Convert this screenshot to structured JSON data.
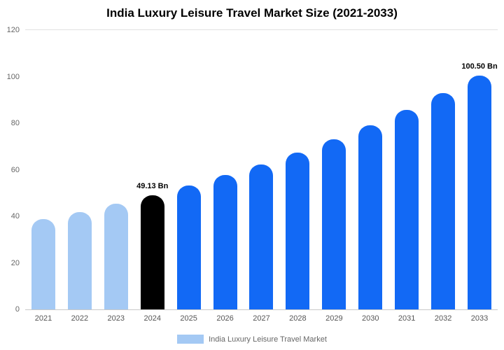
{
  "title": "India Luxury Leisure Travel Market Size (2021-2033)",
  "legend": {
    "label": "India Luxury Leisure Travel Market",
    "swatch_color": "#a4c9f4"
  },
  "colors": {
    "historical": "#a4c9f4",
    "base_year": "#000000",
    "forecast": "#1269f5",
    "axis_line": "#c9c9c9",
    "grid_top": "#e2e2e2",
    "tick_text": "#666666"
  },
  "chart_data": {
    "type": "bar",
    "title": "India Luxury Leisure Travel Market Size (2021-2033)",
    "categories": [
      "2021",
      "2022",
      "2023",
      "2024",
      "2025",
      "2026",
      "2027",
      "2028",
      "2029",
      "2030",
      "2031",
      "2032",
      "2033"
    ],
    "values": [
      38.7,
      41.9,
      45.4,
      49.13,
      53.2,
      57.6,
      62.4,
      67.5,
      73.1,
      79.2,
      85.7,
      92.8,
      100.5
    ],
    "unit": "Bn",
    "bar_colors": [
      "#a4c9f4",
      "#a4c9f4",
      "#a4c9f4",
      "#000000",
      "#1269f5",
      "#1269f5",
      "#1269f5",
      "#1269f5",
      "#1269f5",
      "#1269f5",
      "#1269f5",
      "#1269f5",
      "#1269f5"
    ],
    "annotations": [
      {
        "index": 3,
        "text": "49.13 Bn"
      },
      {
        "index": 12,
        "text": "100.50 Bn"
      }
    ],
    "xlabel": "",
    "ylabel": "",
    "ylim": [
      0,
      120
    ],
    "yticks": [
      0,
      20,
      40,
      60,
      80,
      100,
      120
    ],
    "grid": false,
    "legend_entries": [
      "India Luxury Leisure Travel Market"
    ],
    "legend_position": "bottom"
  }
}
